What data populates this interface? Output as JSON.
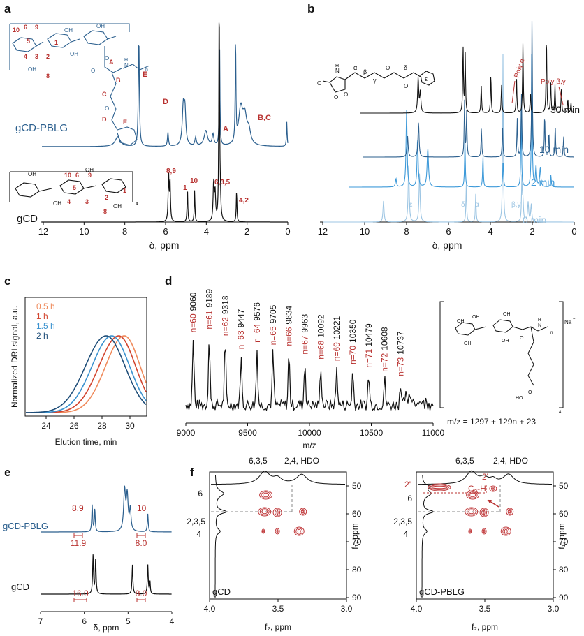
{
  "colors": {
    "black": "#111111",
    "blue_dark": "#2b5f8e",
    "blue_mid": "#3a7fb5",
    "blue_bright": "#3e9ad9",
    "blue_light": "#9cc5e3",
    "red": "#b8312f",
    "orange": "#ef8a5b",
    "red_2": "#d2452f",
    "blue_15": "#3a92cf",
    "navy_2": "#1f4e79",
    "contour": "#c0393b",
    "dashed": "#8a8a8a"
  },
  "panels": {
    "a": {
      "letter": "a",
      "xaxis_label": "δ, ppm",
      "xticks": [
        "12",
        "10",
        "8",
        "6",
        "4",
        "2",
        "0"
      ],
      "trace_labels": [
        "gCD-PBLG",
        "gCD"
      ],
      "peak_labels_top": [
        "E",
        "D",
        "A",
        "B,C"
      ],
      "peak_labels_bottom": [
        "8,9",
        "1",
        "10",
        "6,3,5",
        "4,2"
      ],
      "struct_top_labels": [
        "10",
        "6",
        "9",
        "1",
        "5",
        "4",
        "3",
        "2",
        "8",
        "A",
        "B",
        "C",
        "D",
        "E"
      ],
      "struct_bottom_labels": [
        "10",
        "6",
        "9",
        "5",
        "4",
        "3",
        "2",
        "1",
        "8"
      ],
      "struct_oh": "OH",
      "struct_o": "O",
      "struct_h": "H",
      "struct_n": "N",
      "struct_sub_n": "n",
      "struct_sub_4": "4"
    },
    "b": {
      "letter": "b",
      "xaxis_label": "δ, ppm",
      "xticks": [
        "12",
        "10",
        "8",
        "6",
        "4",
        "2",
        "0"
      ],
      "trace_labels": [
        "30 min",
        "10 min",
        "2 min",
        "0 min"
      ],
      "greek_labels": [
        "α",
        "β",
        "γ",
        "δ",
        "ε"
      ],
      "trace0_labels": [
        "ε",
        "δ",
        "α",
        "β,γ"
      ],
      "annotations": [
        "Poly α",
        "Poly β,γ"
      ],
      "struct_o": "O",
      "struct_h": "H",
      "struct_n": "N"
    },
    "c": {
      "letter": "c",
      "xaxis_label": "Elution time, min",
      "yaxis_label": "Normalized DRI signal, a.u."
    },
    "d": {
      "letter": "d",
      "xaxis_label": "m/z",
      "formula": "m/z = 1297 + 129n + 23",
      "peaks": [
        {
          "n": "n=60",
          "mz": "9060"
        },
        {
          "n": "n=61",
          "mz": "9189"
        },
        {
          "n": "n=62",
          "mz": "9318"
        },
        {
          "n": "n=63",
          "mz": "9447"
        },
        {
          "n": "n=64",
          "mz": "9576"
        },
        {
          "n": "n=65",
          "mz": "9705"
        },
        {
          "n": "n=66",
          "mz": "9834"
        },
        {
          "n": "n=67",
          "mz": "9963"
        },
        {
          "n": "n=68",
          "mz": "10092"
        },
        {
          "n": "n=69",
          "mz": "10221"
        },
        {
          "n": "n=70",
          "mz": "10350"
        },
        {
          "n": "n=71",
          "mz": "10479"
        },
        {
          "n": "n=72",
          "mz": "10608"
        },
        {
          "n": "n=73",
          "mz": "10737"
        }
      ],
      "struct_oh": "OH",
      "struct_o": "O",
      "struct_ho": "HO",
      "struct_h": "H",
      "struct_n": "N",
      "struct_na": "Na",
      "struct_plus": "+",
      "struct_sub_n": "n",
      "struct_sub_4": "4"
    },
    "e": {
      "letter": "e",
      "xaxis_label": "δ, ppm",
      "xticks": [
        "7",
        "6",
        "5",
        "4"
      ],
      "trace_labels": [
        "gCD-PBLG",
        "gCD"
      ],
      "peak_labels": [
        "8,9",
        "10"
      ],
      "integrals_top": [
        "11.9",
        "8.0"
      ],
      "integrals_bottom": [
        "16.0",
        "8.0"
      ]
    },
    "f": {
      "letter": "f",
      "xaxis_label": "f₂, ppm",
      "yaxis_label": "f₁, ppm",
      "xticks": [
        "4.0",
        "3.5",
        "3.0"
      ],
      "yticks": [
        "50",
        "60",
        "70",
        "80",
        "90"
      ],
      "left": {
        "name": "gCD",
        "top_labels": [
          "6,3,5",
          "2,4, HDO"
        ],
        "side_labels": [
          "6",
          "2,3,5",
          "4"
        ]
      },
      "right": {
        "name": "gCD-PBLG",
        "top_labels": [
          "6,3,5",
          "2,4, HDO",
          "2'"
        ],
        "side_labels": [
          "2'",
          "6",
          "2,3,5",
          "4"
        ],
        "c2h_base": "C",
        "c2h_sub": "2",
        "c2h_tail": "-H"
      }
    }
  },
  "chart_data": [
    {
      "id": "c",
      "type": "line",
      "xlabel": "Elution time, min",
      "ylabel": "Normalized DRI signal, a.u.",
      "xlim": [
        22.5,
        31.2
      ],
      "xticks": [
        24,
        26,
        28,
        30
      ],
      "series": [
        {
          "name": "0.5 h",
          "color": "#ef8a5b",
          "peak": 29.6,
          "left_width": 1.9,
          "right_width": 1.6
        },
        {
          "name": "1 h",
          "color": "#d2452f",
          "peak": 29.2,
          "left_width": 2.0,
          "right_width": 1.7
        },
        {
          "name": "1.5 h",
          "color": "#3a92cf",
          "peak": 28.7,
          "left_width": 2.0,
          "right_width": 1.8
        },
        {
          "name": "2 h",
          "color": "#1f4e79",
          "peak": 28.3,
          "left_width": 2.1,
          "right_width": 1.9
        }
      ],
      "legend": "top-left"
    },
    {
      "id": "d",
      "type": "line",
      "xlabel": "m/z",
      "xlim": [
        9000,
        11000
      ],
      "xticks": [
        9000,
        9500,
        10000,
        10500,
        11000
      ],
      "peaks_mz": [
        9060,
        9189,
        9318,
        9447,
        9576,
        9705,
        9834,
        9963,
        10092,
        10221,
        10350,
        10479,
        10608,
        10737
      ],
      "peak_heights": [
        0.78,
        0.82,
        0.74,
        0.58,
        0.66,
        0.63,
        0.62,
        0.52,
        0.46,
        0.44,
        0.4,
        0.36,
        0.31,
        0.26
      ]
    }
  ]
}
